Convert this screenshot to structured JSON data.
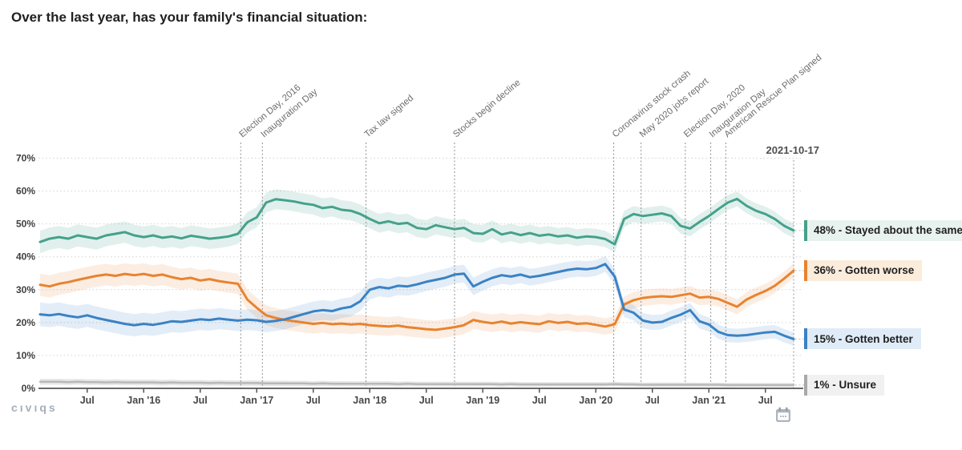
{
  "title": "Over the last year, has your family's financial situation:",
  "current_date_label": "2021-10-17",
  "footer": {
    "logo": "cıvıqs"
  },
  "icons": {
    "footer_right": "calendar-icon"
  },
  "colors": {
    "stayed_same": "#45a18c",
    "gotten_worse": "#e8832f",
    "gotten_better": "#3a82c4",
    "unsure": "#b9b9b9",
    "axis": "#555555",
    "grid": "#d2d2d2",
    "annotation_line": "#8f8f8f"
  },
  "legend": {
    "items": [
      {
        "label": "48% - Stayed about the same",
        "value": 48,
        "color": "#45a18c",
        "bg": "#e8f2ee"
      },
      {
        "label": "36% - Gotten worse",
        "value": 36,
        "color": "#e8832f",
        "bg": "#fbecdc"
      },
      {
        "label": "15% - Gotten better",
        "value": 15,
        "color": "#3a82c4",
        "bg": "#dfecf8"
      },
      {
        "label": "1% - Unsure",
        "value": 1,
        "color": "#a9a9a9",
        "bg": "#f1f1f1"
      }
    ]
  },
  "chart_data": {
    "type": "line",
    "title": "Over the last year, has your family's financial situation:",
    "x_range": [
      "2015-02",
      "2021-10-17"
    ],
    "x_unit": "month",
    "ylim": [
      0,
      70
    ],
    "grid": "dotted-horizontal",
    "legend_position": "right",
    "y_ticks": [
      "0%",
      "10%",
      "20%",
      "30%",
      "40%",
      "50%",
      "60%",
      "70%"
    ],
    "x_ticks": [
      {
        "label": "Jul",
        "t": 5
      },
      {
        "label": "Jan '16",
        "t": 11
      },
      {
        "label": "Jul",
        "t": 17
      },
      {
        "label": "Jan '17",
        "t": 23
      },
      {
        "label": "Jul",
        "t": 29
      },
      {
        "label": "Jan '18",
        "t": 35
      },
      {
        "label": "Jul",
        "t": 41
      },
      {
        "label": "Jan '19",
        "t": 47
      },
      {
        "label": "Jul",
        "t": 53
      },
      {
        "label": "Jan '20",
        "t": 59
      },
      {
        "label": "Jul",
        "t": 65
      },
      {
        "label": "Jan '21",
        "t": 71
      },
      {
        "label": "Jul",
        "t": 77
      }
    ],
    "annotations": [
      {
        "label": "Election Day, 2016",
        "t": 21.3
      },
      {
        "label": "Inauguration Day",
        "t": 23.6
      },
      {
        "label": "Tax law signed",
        "t": 34.6
      },
      {
        "label": "Stocks begin decline",
        "t": 44.0
      },
      {
        "label": "Coronavirus stock crash",
        "t": 60.9
      },
      {
        "label": "May 2020 jobs report",
        "t": 63.8
      },
      {
        "label": "Election Day, 2020",
        "t": 68.5
      },
      {
        "label": "Inauguration Day",
        "t": 71.2
      },
      {
        "label": "American Rescue Plan signed",
        "t": 72.8
      }
    ],
    "series": [
      {
        "name": "Stayed about the same",
        "end_value": 48,
        "color": "#45a18c",
        "band_color": "rgba(69,161,140,0.16)",
        "band_width": [
          3.4,
          2.2
        ],
        "width": 3,
        "values": [
          44.5,
          45.5,
          46,
          45.5,
          46.5,
          46,
          45.5,
          46.5,
          47,
          47.5,
          46.5,
          46,
          46.5,
          45.8,
          46.2,
          45.6,
          46.4,
          46,
          45.5,
          45.8,
          46.2,
          47,
          50.5,
          52,
          56.5,
          57.5,
          57.2,
          56.8,
          56.2,
          55.8,
          54.8,
          55.2,
          54.3,
          54,
          53,
          51.5,
          50.2,
          50.8,
          50,
          50.3,
          48.8,
          48.4,
          49.6,
          49,
          48.4,
          48.8,
          47.2,
          47,
          48.4,
          46.8,
          47.4,
          46.6,
          47.2,
          46.4,
          46.8,
          46.2,
          46.5,
          45.8,
          46.2,
          46,
          45.4,
          43.8,
          51.5,
          53,
          52.4,
          52.8,
          53.2,
          52.4,
          49.4,
          48.6,
          50.6,
          52.4,
          54.5,
          56.5,
          57.6,
          55.5,
          54,
          53,
          51.5,
          49.4,
          48
        ]
      },
      {
        "name": "Gotten worse",
        "end_value": 36,
        "color": "#e8832f",
        "band_color": "rgba(232,131,47,0.14)",
        "band_width": [
          3.4,
          2.2
        ],
        "width": 3,
        "values": [
          31.5,
          31,
          31.8,
          32.3,
          33,
          33.6,
          34.2,
          34.6,
          34.2,
          34.8,
          34.4,
          34.8,
          34.2,
          34.6,
          33.8,
          33.2,
          33.6,
          32.8,
          33.2,
          32.6,
          32.2,
          31.8,
          27,
          24.5,
          22.2,
          21.4,
          20.8,
          20.4,
          20,
          19.6,
          19.9,
          19.5,
          19.7,
          19.4,
          19.6,
          19.2,
          19,
          18.8,
          19.1,
          18.6,
          18.3,
          18,
          17.8,
          18.2,
          18.6,
          19.2,
          20.8,
          20.2,
          19.8,
          20.3,
          19.7,
          20.1,
          19.8,
          19.5,
          20.4,
          19.9,
          20.2,
          19.6,
          19.8,
          19.3,
          18.8,
          19.5,
          25.5,
          26.8,
          27.5,
          27.8,
          28,
          27.8,
          28.3,
          28.8,
          27.6,
          27.8,
          27.2,
          26,
          24.8,
          27,
          28.4,
          29.6,
          31.2,
          33.4,
          35.8
        ]
      },
      {
        "name": "Gotten better",
        "end_value": 15,
        "color": "#3a82c4",
        "band_color": "rgba(58,130,196,0.14)",
        "band_width": [
          3.6,
          2.0
        ],
        "width": 3,
        "values": [
          22.5,
          22.2,
          22.6,
          22,
          21.6,
          22.2,
          21.4,
          20.8,
          20.2,
          19.6,
          19.2,
          19.6,
          19.3,
          19.8,
          20.4,
          20.2,
          20.6,
          21,
          20.8,
          21.2,
          20.9,
          20.6,
          20.9,
          20.7,
          20.2,
          20.5,
          21,
          21.8,
          22.6,
          23.4,
          23.8,
          23.5,
          24.3,
          24.8,
          26.5,
          30,
          30.8,
          30.4,
          31.2,
          31,
          31.6,
          32.4,
          33,
          33.6,
          34.6,
          34.9,
          31,
          32.4,
          33.6,
          34.4,
          34,
          34.6,
          33.8,
          34.2,
          34.8,
          35.4,
          36,
          36.4,
          36.2,
          36.6,
          37.8,
          34,
          24,
          23,
          20.6,
          20,
          20.2,
          21.4,
          22.4,
          23.8,
          20.4,
          19.4,
          17.2,
          16.2,
          16,
          16.2,
          16.6,
          17,
          17.2,
          16,
          15
        ]
      },
      {
        "name": "Unsure",
        "end_value": 1,
        "color": "#b9b9b9",
        "band_color": "rgba(140,140,140,0.22)",
        "band_width": [
          0.9,
          0.6
        ],
        "width": 2.5,
        "values": [
          2,
          2,
          2,
          1.9,
          2,
          1.9,
          1.9,
          1.8,
          1.9,
          1.8,
          1.8,
          1.8,
          1.8,
          1.7,
          1.8,
          1.7,
          1.7,
          1.7,
          1.6,
          1.7,
          1.6,
          1.6,
          1.6,
          1.6,
          1.5,
          1.5,
          1.5,
          1.5,
          1.5,
          1.4,
          1.5,
          1.4,
          1.4,
          1.4,
          1.4,
          1.4,
          1.4,
          1.4,
          1.3,
          1.4,
          1.3,
          1.3,
          1.3,
          1.3,
          1.3,
          1.3,
          1.3,
          1.3,
          1.3,
          1.2,
          1.3,
          1.2,
          1.2,
          1.2,
          1.2,
          1.2,
          1.2,
          1.2,
          1.2,
          1.2,
          1.2,
          1.3,
          1.2,
          1.2,
          1.1,
          1.1,
          1.1,
          1.1,
          1.1,
          1.1,
          1.1,
          1.1,
          1.1,
          1,
          1,
          1,
          1,
          1,
          1,
          1,
          1
        ]
      }
    ]
  }
}
